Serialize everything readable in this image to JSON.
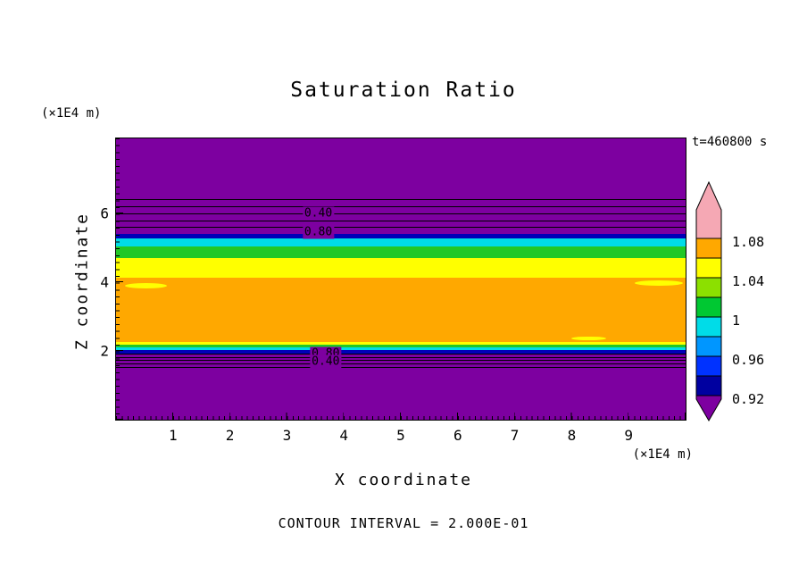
{
  "chart_data": {
    "type": "heatmap",
    "subtype": "filled_contour_plot",
    "title": "Saturation Ratio",
    "time_annotation": "t=460800 s",
    "xlabel": "X coordinate",
    "ylabel": "Z coordinate",
    "x_unit": "(×1E4 m)",
    "y_unit": "(×1E4 m)",
    "contour_note": "CONTOUR INTERVAL = 2.000E-01",
    "xlim": [
      0,
      10
    ],
    "ylim": [
      0,
      8.18
    ],
    "x_ticks": [
      1,
      2,
      3,
      4,
      5,
      6,
      7,
      8,
      9
    ],
    "y_ticks": [
      2,
      4,
      6
    ],
    "grid": false,
    "bands": [
      {
        "z": [
          8.18,
          5.4
        ],
        "color": "#7d00a0",
        "sat": "< 0.92"
      },
      {
        "z": [
          5.4,
          5.27
        ],
        "color": "#0000b8",
        "sat": "0.92-0.96"
      },
      {
        "z": [
          5.27,
          5.04
        ],
        "color": "#00dce8",
        "sat": "0.96-1.00"
      },
      {
        "z": [
          5.04,
          4.7
        ],
        "color": "#22c826",
        "sat": "1.00-1.02"
      },
      {
        "z": [
          4.7,
          4.13
        ],
        "color": "#ffff00",
        "sat": "1.02-1.04"
      },
      {
        "z": [
          4.13,
          2.26
        ],
        "color": "#ffa800",
        "sat": "1.04-1.08"
      },
      {
        "z": [
          2.26,
          2.18
        ],
        "color": "#ffff00",
        "sat": "1.02-1.04"
      },
      {
        "z": [
          2.18,
          2.1
        ],
        "color": "#22c826",
        "sat": "1.00-1.02"
      },
      {
        "z": [
          2.1,
          2.02
        ],
        "color": "#00dce8",
        "sat": "0.96-1.00"
      },
      {
        "z": [
          2.02,
          1.93
        ],
        "color": "#0000b8",
        "sat": "0.92-0.96"
      },
      {
        "z": [
          1.93,
          0.0
        ],
        "color": "#7d00a0",
        "sat": "< 0.92"
      }
    ],
    "patches": [
      {
        "x": [
          0.15,
          0.9
        ],
        "z": [
          3.82,
          3.98
        ],
        "color": "#ffff00"
      },
      {
        "x": [
          9.1,
          9.95
        ],
        "z": [
          3.9,
          4.06
        ],
        "color": "#ffff00"
      },
      {
        "x": [
          8.0,
          8.6
        ],
        "z": [
          2.3,
          2.42
        ],
        "color": "#ffff00"
      }
    ],
    "contour_lines": [
      {
        "z": 6.42
      },
      {
        "z": 6.21
      },
      {
        "z": 6.0
      },
      {
        "z": 5.79
      },
      {
        "z": 5.6
      },
      {
        "z": 1.93
      },
      {
        "z": 1.83
      },
      {
        "z": 1.73
      },
      {
        "z": 1.63
      },
      {
        "z": 1.53
      }
    ],
    "contour_labels": [
      {
        "z": 6.0,
        "x": 3.55,
        "text": "0.40"
      },
      {
        "z": 5.45,
        "x": 3.55,
        "text": "0.80"
      },
      {
        "z": 1.93,
        "x": 3.68,
        "text": "0.80"
      },
      {
        "z": 1.7,
        "x": 3.68,
        "text": "0.40"
      }
    ],
    "colorbar": {
      "labels": [
        "1.08",
        "1.04",
        "1",
        "0.96",
        "0.92"
      ],
      "colors": [
        "#f5a8b4",
        "#ffa800",
        "#ffff00",
        "#8ce000",
        "#00c832",
        "#00dce8",
        "#0096ff",
        "#0032ff",
        "#0000a0",
        "#7d00a0"
      ]
    }
  }
}
